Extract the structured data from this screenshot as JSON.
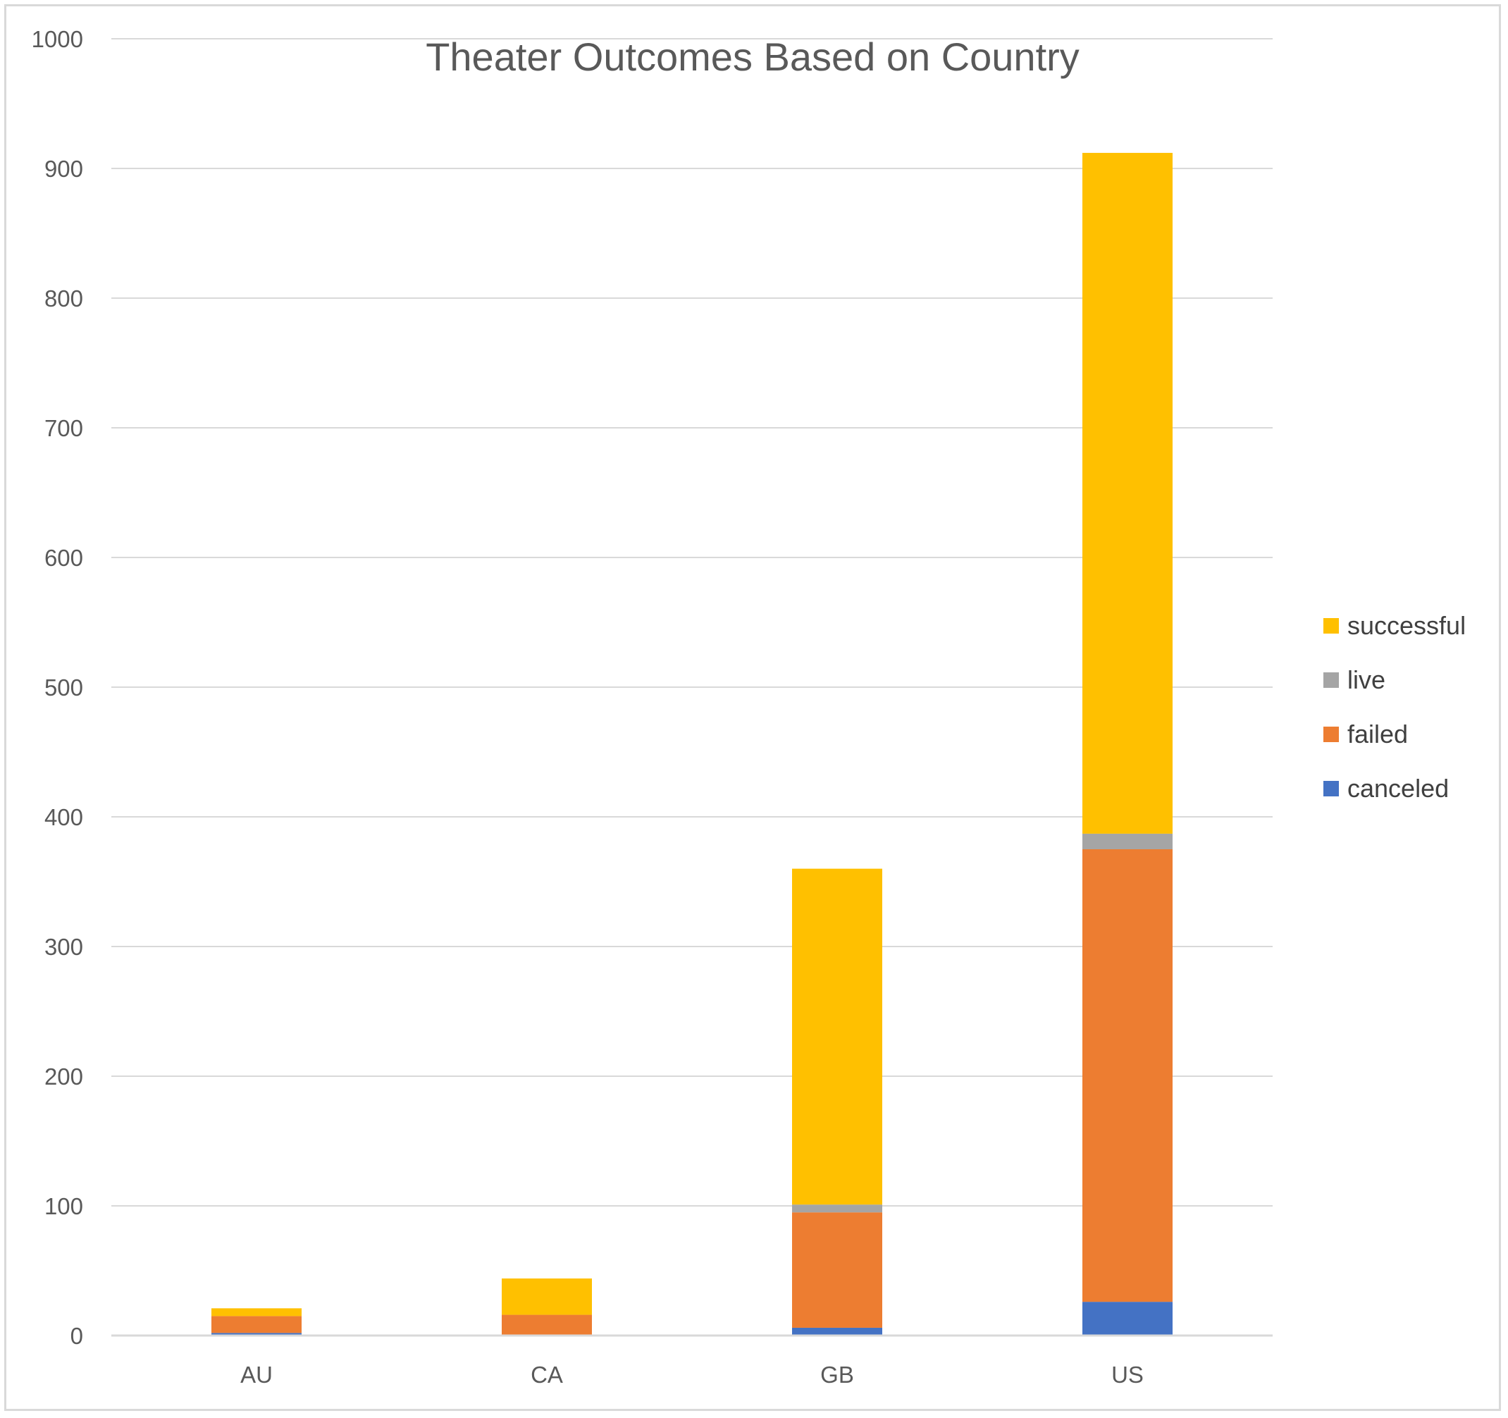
{
  "chart_data": {
    "type": "bar",
    "stacked": true,
    "title": "Theater Outcomes Based on Country",
    "xlabel": "",
    "ylabel": "",
    "categories": [
      "AU",
      "CA",
      "GB",
      "US"
    ],
    "ylim": [
      0,
      1000
    ],
    "yticks": [
      0,
      100,
      200,
      300,
      400,
      500,
      600,
      700,
      800,
      900,
      1000
    ],
    "grid": true,
    "legend_position": "right",
    "series": [
      {
        "name": "canceled",
        "color": "#4472C4",
        "values": [
          2,
          0,
          6,
          26
        ]
      },
      {
        "name": "failed",
        "color": "#ED7D31",
        "values": [
          13,
          16,
          89,
          349
        ]
      },
      {
        "name": "live",
        "color": "#A5A5A5",
        "values": [
          0,
          0,
          6,
          12
        ]
      },
      {
        "name": "successful",
        "color": "#FFC000",
        "values": [
          6,
          28,
          259,
          525
        ]
      }
    ],
    "legend_order": [
      "successful",
      "live",
      "failed",
      "canceled"
    ]
  }
}
